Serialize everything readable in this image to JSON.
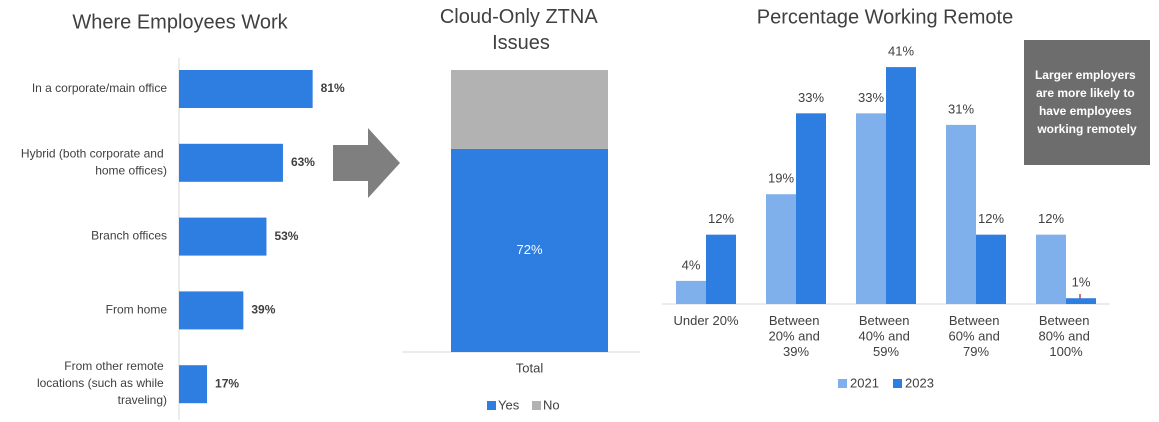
{
  "chart_data": [
    {
      "type": "hbar",
      "title": "Where Employees Work",
      "categories": [
        "In a corporate/main office",
        "Hybrid (both corporate and home offices)",
        "Branch offices",
        "From home",
        "From other remote locations (such as while traveling)"
      ],
      "values": [
        81,
        63,
        53,
        39,
        17
      ],
      "value_labels": [
        "81%",
        "63%",
        "53%",
        "39%",
        "17%"
      ],
      "color": "#2e7de0",
      "xlim": [
        0,
        100
      ]
    },
    {
      "type": "stacked",
      "title": "Cloud-Only ZTNA Issues",
      "categories": [
        "Total"
      ],
      "series": [
        {
          "name": "Yes",
          "color": "#2e7de0",
          "values": [
            72
          ],
          "value_labels": [
            "72%"
          ]
        },
        {
          "name": "No",
          "color": "#b2b2b2",
          "values": [
            28
          ]
        }
      ],
      "ylim": [
        0,
        100
      ],
      "legend": "bottom"
    },
    {
      "type": "grouped",
      "title": "Percentage Working Remote",
      "categories": [
        "Under 20%",
        "Between 20% and 39%",
        "Between 40% and 59%",
        "Between 60% and 79%",
        "Between 80% and 100%"
      ],
      "series": [
        {
          "name": "2021",
          "color": "#7fb0ec",
          "values": [
            4,
            19,
            33,
            31,
            12
          ],
          "value_labels": [
            "4%",
            "19%",
            "33%",
            "31%",
            "12%"
          ]
        },
        {
          "name": "2023",
          "color": "#2e7de0",
          "values": [
            12,
            33,
            41,
            12,
            1
          ],
          "value_labels": [
            "12%",
            "33%",
            "41%",
            "12%",
            "1%"
          ]
        }
      ],
      "ylim": [
        0,
        45
      ],
      "legend": "bottom",
      "annotation": "Larger employers are more likely to have employees working remotely"
    }
  ]
}
